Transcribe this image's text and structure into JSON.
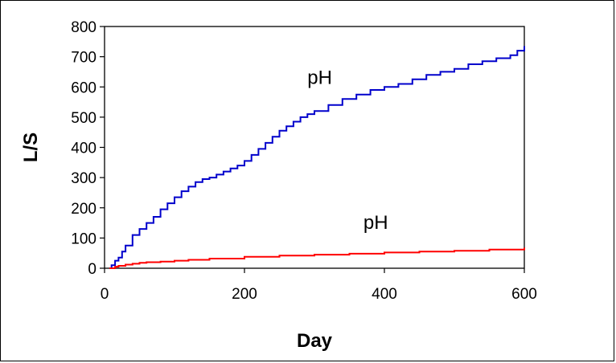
{
  "chart_data": {
    "type": "line",
    "title": "",
    "xlabel": "Day",
    "ylabel": "L/S",
    "xlim": [
      0,
      600
    ],
    "ylim": [
      0,
      800
    ],
    "x_ticks": [
      0,
      200,
      400,
      600
    ],
    "y_ticks": [
      0,
      100,
      200,
      300,
      400,
      500,
      600,
      700,
      800
    ],
    "grid": false,
    "legend": "none",
    "series": [
      {
        "label": "pH",
        "color": "#0000cc",
        "x": [
          7,
          10,
          15,
          20,
          25,
          30,
          40,
          50,
          60,
          70,
          80,
          90,
          100,
          110,
          120,
          130,
          140,
          150,
          160,
          170,
          180,
          190,
          200,
          210,
          220,
          230,
          240,
          250,
          260,
          270,
          280,
          290,
          300,
          320,
          340,
          360,
          380,
          400,
          420,
          440,
          460,
          480,
          500,
          520,
          540,
          560,
          580,
          590,
          600
        ],
        "y": [
          0,
          10,
          25,
          35,
          55,
          75,
          110,
          130,
          150,
          170,
          195,
          215,
          235,
          255,
          270,
          285,
          295,
          300,
          310,
          320,
          330,
          340,
          355,
          375,
          395,
          415,
          435,
          455,
          470,
          485,
          500,
          510,
          520,
          540,
          560,
          575,
          590,
          600,
          610,
          625,
          640,
          650,
          660,
          675,
          685,
          695,
          705,
          720,
          735
        ]
      },
      {
        "label": "pH",
        "color": "#ff0000",
        "x": [
          7,
          15,
          20,
          30,
          40,
          50,
          60,
          80,
          100,
          120,
          150,
          200,
          250,
          300,
          350,
          400,
          450,
          500,
          550,
          600
        ],
        "y": [
          0,
          5,
          8,
          12,
          15,
          18,
          20,
          22,
          25,
          28,
          32,
          38,
          42,
          45,
          48,
          52,
          55,
          58,
          62,
          68
        ]
      }
    ],
    "annotations": [
      {
        "text": "pH",
        "series_index": 0,
        "x": 290,
        "y": 610
      },
      {
        "text": "pH",
        "series_index": 1,
        "x": 370,
        "y": 130
      }
    ]
  }
}
